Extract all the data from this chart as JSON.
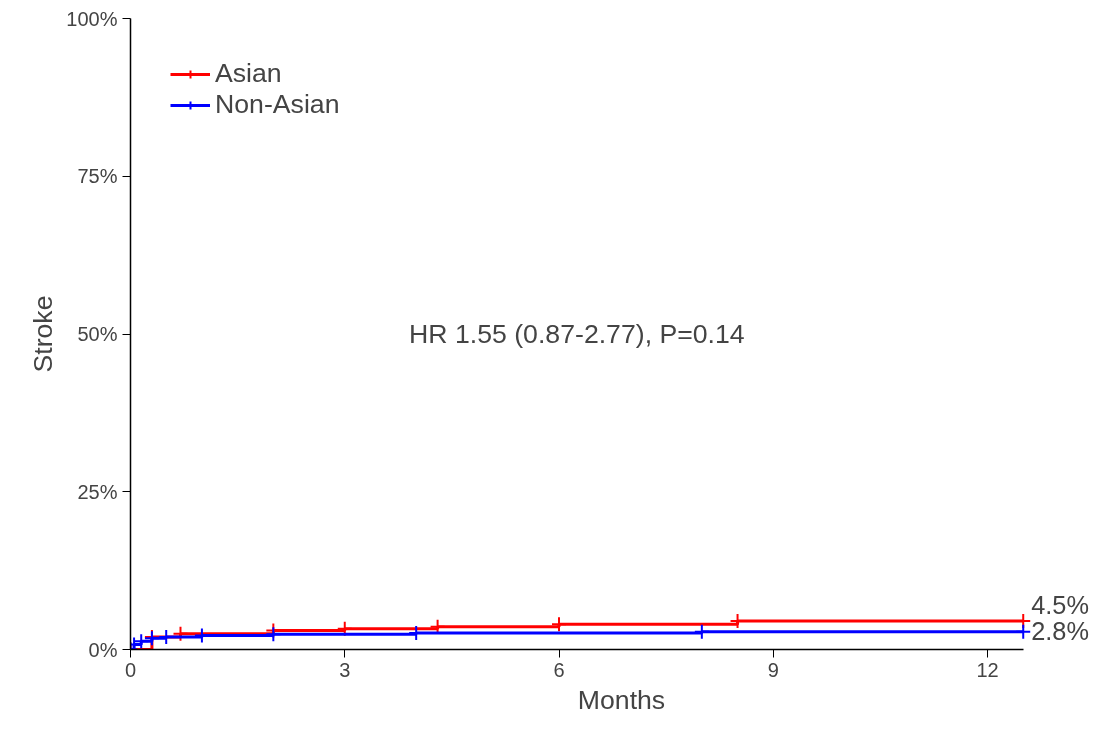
{
  "chart_data": {
    "type": "step",
    "xlabel": "Months",
    "ylabel": "Stroke",
    "xlim": [
      0,
      12.5
    ],
    "xticks": [
      0,
      3,
      6,
      9,
      12
    ],
    "ylim": [
      0,
      100
    ],
    "yticks": [
      {
        "value": 0,
        "label": "0%"
      },
      {
        "value": 25,
        "label": "25%"
      },
      {
        "value": 50,
        "label": "50%"
      },
      {
        "value": 75,
        "label": "75%"
      },
      {
        "value": 100,
        "label": "100%"
      }
    ],
    "grid": false,
    "legend": "top left",
    "marker": "cross",
    "line_style": "solid",
    "series": [
      {
        "name": "Asian",
        "color": "#ff0000",
        "x": [
          0,
          0.3,
          0.7,
          2.0,
          3.0,
          4.3,
          6.0,
          8.5,
          12.5
        ],
        "values": [
          0,
          2.0,
          2.5,
          3.0,
          3.3,
          3.6,
          4.0,
          4.5,
          4.5
        ]
      },
      {
        "name": "Non-Asian",
        "color": "#0000ff",
        "x": [
          0,
          0.05,
          0.15,
          0.3,
          0.5,
          1.0,
          2.0,
          4.0,
          8.0,
          12.5
        ],
        "values": [
          0,
          0.8,
          1.3,
          1.8,
          2.0,
          2.2,
          2.4,
          2.6,
          2.8,
          2.8
        ]
      }
    ],
    "annotations": [
      {
        "text": "HR 1.55 (0.87-2.77), P=0.14"
      },
      {
        "text": "4.5%",
        "x": 12.5,
        "y": 4.5
      },
      {
        "text": "2.8%",
        "x": 12.5,
        "y": 2.8
      }
    ]
  }
}
